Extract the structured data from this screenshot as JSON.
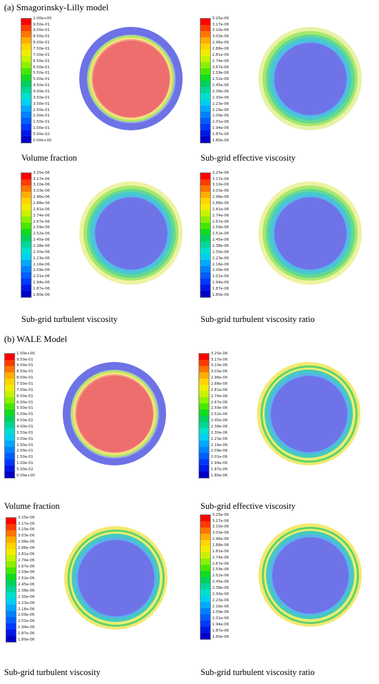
{
  "figure": {
    "sections": [
      {
        "title": "(a) Smagorinsky-Lilly model",
        "panels": [
          {
            "caption": "Volume fraction",
            "scale": "vf",
            "rings": [
              {
                "color": "#6d72e6"
              },
              {
                "color": "#9da0ea"
              },
              {
                "color": "#a9e86a"
              },
              {
                "color": "#f5e27a"
              },
              {
                "color": "#f29a82"
              },
              {
                "color": "#ee6e6e"
              }
            ]
          },
          {
            "caption": "Sub-grid effective viscosity",
            "scale": "visc",
            "rings": [
              {
                "color": "#e8f2a6"
              },
              {
                "color": "#a5e86c"
              },
              {
                "color": "#63d894"
              },
              {
                "color": "#48c9cd"
              },
              {
                "color": "#53b8ea"
              },
              {
                "color": "#6f73e8"
              }
            ]
          },
          {
            "caption": "Sub-grid turbulent viscosity",
            "scale": "visc",
            "rings": [
              {
                "color": "#eef2a3"
              },
              {
                "color": "#a5e86c"
              },
              {
                "color": "#63d894"
              },
              {
                "color": "#48c9cd"
              },
              {
                "color": "#53b8ea"
              },
              {
                "color": "#6f73e8"
              }
            ]
          },
          {
            "caption": "Sub-grid turbulent viscosity ratio",
            "scale": "visc",
            "rings": [
              {
                "color": "#eef2a3"
              },
              {
                "color": "#a5e86c"
              },
              {
                "color": "#63d894"
              },
              {
                "color": "#48c9cd"
              },
              {
                "color": "#53b8ea"
              },
              {
                "color": "#6f73e8"
              }
            ]
          }
        ]
      },
      {
        "title": "(b) WALE Model",
        "panels": [
          {
            "caption": "Volume fraction",
            "scale": "vf",
            "rings": [
              {
                "color": "#6d72e6"
              },
              {
                "color": "#9da0ea"
              },
              {
                "color": "#b2e86a"
              },
              {
                "color": "#f5e27a"
              },
              {
                "color": "#f29a82"
              },
              {
                "color": "#ee6e6e"
              }
            ]
          },
          {
            "caption": "Sub-grid effective viscosity",
            "scale": "visc",
            "rings": [
              {
                "color": "#f3e96f"
              },
              {
                "color": "#5fd36c"
              },
              {
                "color": "#e8ee70"
              },
              {
                "color": "#45cabf"
              },
              {
                "color": "#58b3ec"
              },
              {
                "color": "#6f73e8"
              }
            ]
          },
          {
            "caption": "Sub-grid turbulent viscosity",
            "scale": "visc",
            "rings": [
              {
                "color": "#f3e96f"
              },
              {
                "color": "#5fd36c"
              },
              {
                "color": "#e8ee70"
              },
              {
                "color": "#45cabf"
              },
              {
                "color": "#58b3ec"
              },
              {
                "color": "#6f73e8"
              }
            ]
          },
          {
            "caption": "Sub-grid turbulent viscosity ratio",
            "scale": "visc",
            "rings": [
              {
                "color": "#f3e96f"
              },
              {
                "color": "#5fd36c"
              },
              {
                "color": "#e8ee70"
              },
              {
                "color": "#45cabf"
              },
              {
                "color": "#58b3ec"
              },
              {
                "color": "#6f73e8"
              }
            ]
          }
        ]
      }
    ]
  },
  "scales": {
    "vf": {
      "ticks": [
        "1.00e+00",
        "9.50e-01",
        "9.00e-01",
        "8.50e-01",
        "8.00e-01",
        "7.50e-01",
        "7.00e-01",
        "6.50e-01",
        "6.00e-01",
        "5.50e-01",
        "5.00e-01",
        "4.50e-01",
        "4.00e-01",
        "3.50e-01",
        "3.00e-01",
        "2.50e-01",
        "2.00e-01",
        "1.50e-01",
        "1.00e-01",
        "5.00e-02",
        "0.00e+00"
      ],
      "colors": [
        "#ff0000",
        "#ff3b00",
        "#ff7500",
        "#ffad00",
        "#ffd400",
        "#f2ec00",
        "#c7f200",
        "#8cf000",
        "#47e800",
        "#10dc20",
        "#00d15c",
        "#00d69a",
        "#00e0cf",
        "#00d0f0",
        "#00a8ff",
        "#0082ff",
        "#005eff",
        "#0038ff",
        "#0018e6",
        "#0000c8"
      ]
    },
    "visc": {
      "ticks": [
        "3.25e-06",
        "3.17e-06",
        "3.10e-06",
        "3.03e-06",
        "2.96e-06",
        "2.88e-06",
        "2.81e-06",
        "2.74e-06",
        "2.67e-06",
        "2.59e-06",
        "2.52e-06",
        "2.45e-06",
        "2.38e-06",
        "2.30e-06",
        "2.23e-06",
        "2.16e-06",
        "2.09e-06",
        "2.01e-06",
        "1.94e-06",
        "1.87e-06",
        "1.80e-06"
      ],
      "colors": [
        "#ff0000",
        "#ff3b00",
        "#ff7500",
        "#ffad00",
        "#ffd400",
        "#f2ec00",
        "#c7f200",
        "#8cf000",
        "#47e800",
        "#10dc20",
        "#00d15c",
        "#00d69a",
        "#00e0cf",
        "#00d0f0",
        "#00a8ff",
        "#0082ff",
        "#005eff",
        "#0038ff",
        "#0018e6",
        "#0000c8"
      ]
    }
  }
}
